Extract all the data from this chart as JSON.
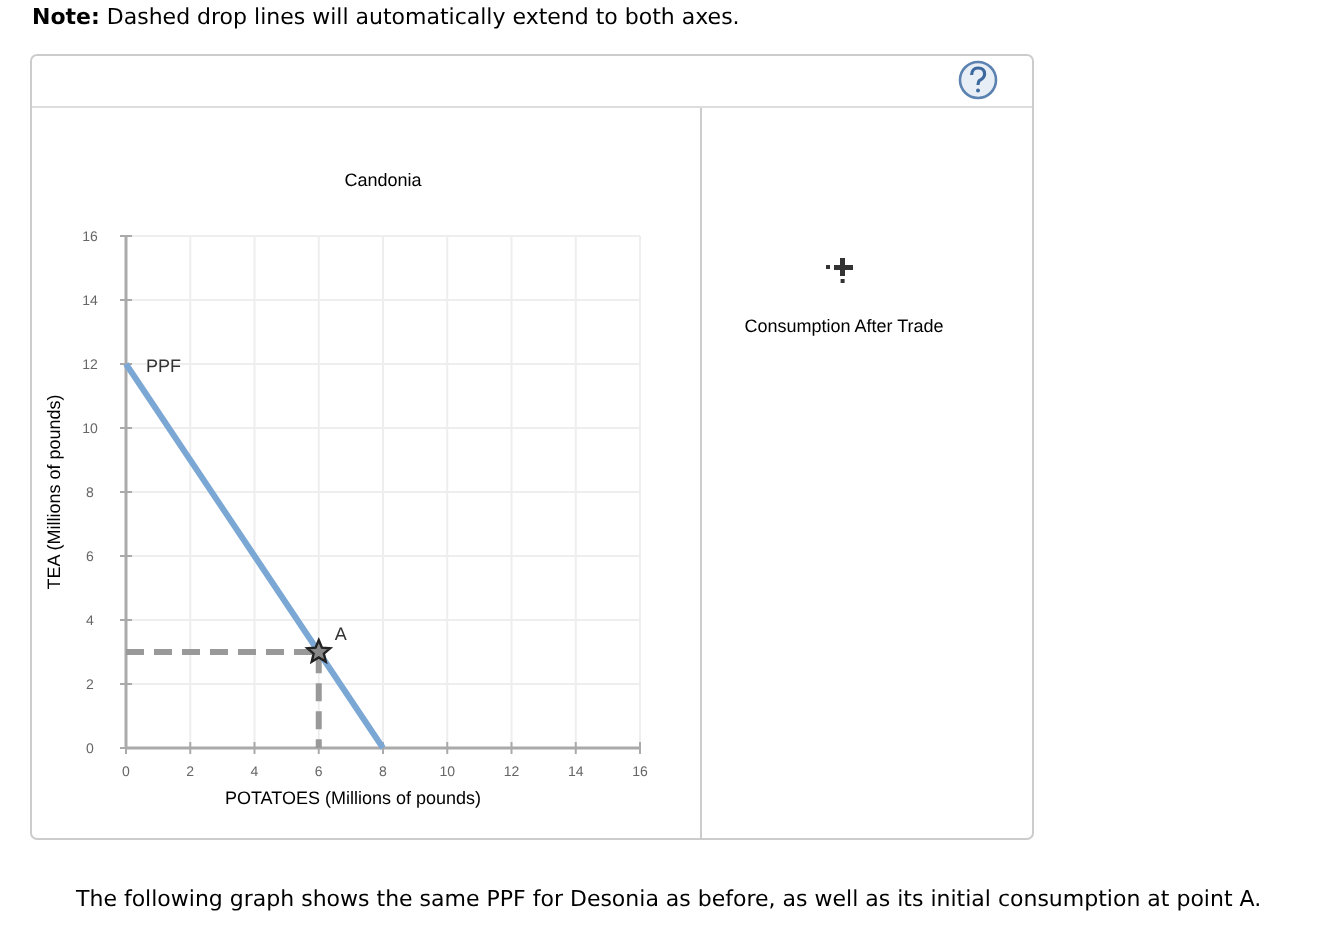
{
  "chart_data": {
    "type": "line",
    "title": "Candonia",
    "xlabel": "POTATOES (Millions of pounds)",
    "ylabel": "TEA (Millions of pounds)",
    "xlim": [
      0,
      16
    ],
    "xticks": [
      0,
      2,
      4,
      6,
      8,
      10,
      12,
      14,
      16
    ],
    "ylim": [
      0,
      16
    ],
    "yticks": [
      0,
      2,
      4,
      6,
      8,
      10,
      12,
      14,
      16
    ],
    "grid": true,
    "series": [
      {
        "name": "PPF",
        "color": "#7ba7d4",
        "x": [
          0,
          8
        ],
        "values": [
          12,
          0
        ],
        "line_style": "solid"
      },
      {
        "type": "line",
        "color": "#999999",
        "x": [
          0,
          6,
          6
        ],
        "values": [
          3,
          3,
          0
        ],
        "line_style": "dashed"
      },
      {
        "name": "A",
        "type": "scatter",
        "color": "#888888",
        "x": [
          6
        ],
        "values": [
          3
        ],
        "marker": "star"
      }
    ],
    "annotations": [
      "Note: Dashed drop lines will automatically extend to both axes.",
      "Consumption After Trade",
      "The following graph shows the same PPF for Desonia as before, as well as its initial consumption at point A."
    ]
  }
}
